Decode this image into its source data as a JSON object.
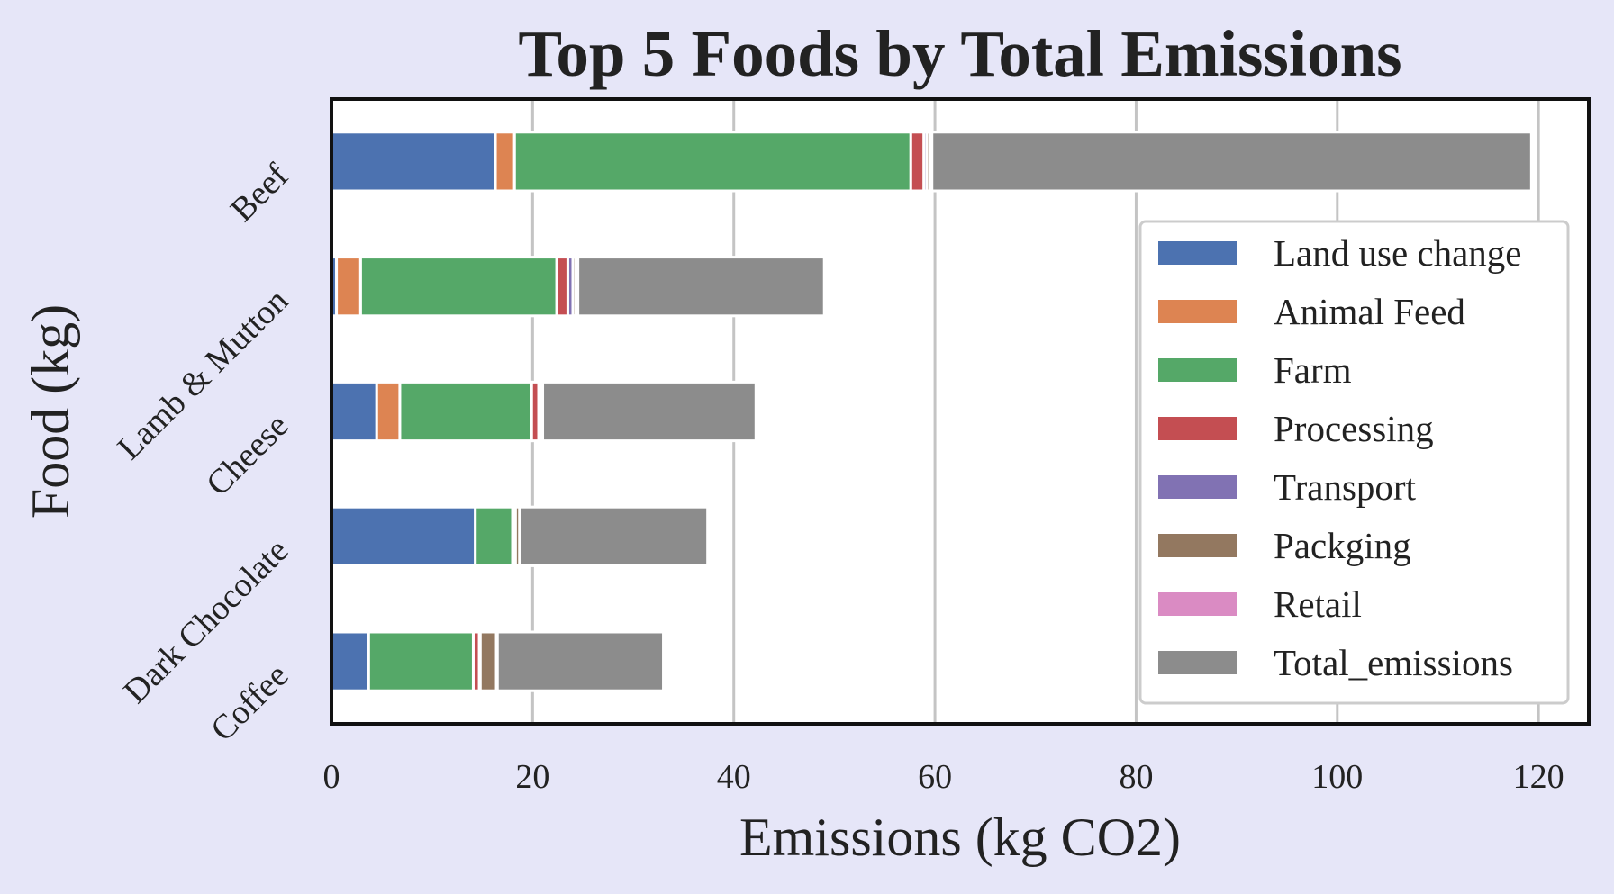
{
  "chart_data": {
    "type": "bar",
    "orientation": "horizontal",
    "stacked": true,
    "title": "Top 5 Foods by Total Emissions",
    "xlabel": "Emissions (kg CO2)",
    "ylabel": "Food (kg)",
    "xlim": [
      0,
      125
    ],
    "xticks": [
      0,
      20,
      40,
      60,
      80,
      100,
      120
    ],
    "grid": "vertical",
    "legend_position": "right",
    "categories": [
      "Beef",
      "Lamb & Mutton",
      "Cheese",
      "Dark Chocolate",
      "Coffee"
    ],
    "series": [
      {
        "name": "Land use change",
        "color": "#4c72b0",
        "values": [
          16.3,
          0.5,
          4.5,
          14.3,
          3.7
        ]
      },
      {
        "name": "Animal Feed",
        "color": "#dd8452",
        "values": [
          1.9,
          2.4,
          2.3,
          0.0,
          0.0
        ]
      },
      {
        "name": "Farm",
        "color": "#55a868",
        "values": [
          39.4,
          19.5,
          13.1,
          3.7,
          10.4
        ]
      },
      {
        "name": "Processing",
        "color": "#c44e52",
        "values": [
          1.3,
          1.1,
          0.7,
          0.2,
          0.6
        ]
      },
      {
        "name": "Transport",
        "color": "#8172b3",
        "values": [
          0.3,
          0.5,
          0.1,
          0.1,
          0.1
        ]
      },
      {
        "name": "Packging",
        "color": "#937860",
        "values": [
          0.3,
          0.3,
          0.2,
          0.4,
          1.6
        ]
      },
      {
        "name": "Retail",
        "color": "#da8bc3",
        "values": [
          0.2,
          0.2,
          0.1,
          0.0,
          0.1
        ]
      },
      {
        "name": "Total_emissions",
        "color": "#8c8c8c",
        "values": [
          59.6,
          24.5,
          21.2,
          18.7,
          16.5
        ]
      }
    ]
  }
}
